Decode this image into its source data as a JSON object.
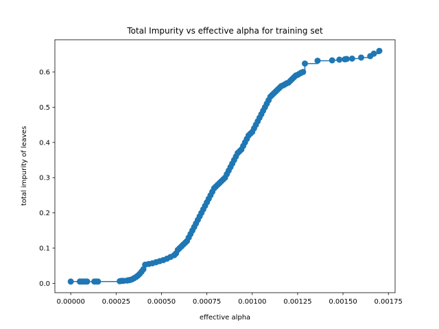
{
  "chart_data": {
    "type": "line",
    "title": "Total Impurity vs effective alpha for training set",
    "xlabel": "effective alpha",
    "ylabel": "total impurity of leaves",
    "xlim": [
      -8.75e-05,
      0.001787
    ],
    "ylim": [
      -0.0265,
      0.6915
    ],
    "xticks": [
      {
        "value": 0.0,
        "label": "0.00000"
      },
      {
        "value": 0.00025,
        "label": "0.00025"
      },
      {
        "value": 0.0005,
        "label": "0.00050"
      },
      {
        "value": 0.00075,
        "label": "0.00075"
      },
      {
        "value": 0.001,
        "label": "0.00100"
      },
      {
        "value": 0.00125,
        "label": "0.00125"
      },
      {
        "value": 0.0015,
        "label": "0.00150"
      },
      {
        "value": 0.00175,
        "label": "0.00175"
      }
    ],
    "yticks": [
      {
        "value": 0.0,
        "label": "0.0"
      },
      {
        "value": 0.1,
        "label": "0.1"
      },
      {
        "value": 0.2,
        "label": "0.2"
      },
      {
        "value": 0.3,
        "label": "0.3"
      },
      {
        "value": 0.4,
        "label": "0.4"
      },
      {
        "value": 0.5,
        "label": "0.5"
      },
      {
        "value": 0.6,
        "label": "0.6"
      }
    ],
    "grid": false,
    "marker": "circle",
    "drawstyle": "steps-post",
    "color": "#1f77b4",
    "series": [
      {
        "x": [
          0.0,
          5e-05,
          6e-05,
          7e-05,
          8e-05,
          9e-05,
          0.00013,
          0.00014,
          0.00015,
          0.00027,
          0.00028,
          0.00029,
          0.00031,
          0.00032,
          0.00033,
          0.00034,
          0.00035,
          0.00036,
          0.00037,
          0.00038,
          0.00039,
          0.0004,
          0.00041,
          0.00043,
          0.00045,
          0.00047,
          0.00049,
          0.00051,
          0.00053,
          0.00055,
          0.00057,
          0.00058,
          0.00059,
          0.0006,
          0.00061,
          0.00062,
          0.00063,
          0.00064,
          0.00065,
          0.00066,
          0.00067,
          0.00068,
          0.00069,
          0.0007,
          0.00071,
          0.00072,
          0.00073,
          0.00074,
          0.00075,
          0.00076,
          0.00077,
          0.00078,
          0.00079,
          0.0008,
          0.00081,
          0.00082,
          0.00083,
          0.00084,
          0.00085,
          0.00086,
          0.00087,
          0.00088,
          0.00089,
          0.0009,
          0.00091,
          0.00092,
          0.00093,
          0.00094,
          0.00095,
          0.00096,
          0.00097,
          0.00098,
          0.00099,
          0.001,
          0.00101,
          0.00102,
          0.00103,
          0.00104,
          0.00105,
          0.00106,
          0.00107,
          0.00108,
          0.00109,
          0.0011,
          0.00111,
          0.00112,
          0.00113,
          0.00114,
          0.00115,
          0.00116,
          0.00117,
          0.00118,
          0.00119,
          0.0012,
          0.00121,
          0.00122,
          0.00123,
          0.00124,
          0.00125,
          0.00126,
          0.00127,
          0.00128,
          0.00129,
          0.00136,
          0.00144,
          0.00148,
          0.00151,
          0.00152,
          0.00155,
          0.0016,
          0.00165,
          0.00167,
          0.0017
        ],
        "y": [
          0.005,
          0.005,
          0.005,
          0.005,
          0.005,
          0.005,
          0.005,
          0.005,
          0.005,
          0.006,
          0.007,
          0.007,
          0.008,
          0.009,
          0.01,
          0.012,
          0.015,
          0.018,
          0.022,
          0.027,
          0.033,
          0.04,
          0.053,
          0.055,
          0.057,
          0.06,
          0.063,
          0.066,
          0.07,
          0.075,
          0.08,
          0.085,
          0.095,
          0.1,
          0.105,
          0.11,
          0.115,
          0.12,
          0.13,
          0.14,
          0.15,
          0.16,
          0.17,
          0.18,
          0.19,
          0.2,
          0.21,
          0.22,
          0.23,
          0.24,
          0.25,
          0.26,
          0.27,
          0.275,
          0.28,
          0.285,
          0.29,
          0.295,
          0.3,
          0.31,
          0.32,
          0.33,
          0.34,
          0.35,
          0.36,
          0.37,
          0.375,
          0.38,
          0.39,
          0.4,
          0.41,
          0.42,
          0.425,
          0.43,
          0.44,
          0.45,
          0.46,
          0.47,
          0.48,
          0.49,
          0.5,
          0.51,
          0.52,
          0.53,
          0.535,
          0.54,
          0.545,
          0.55,
          0.555,
          0.56,
          0.562,
          0.565,
          0.568,
          0.57,
          0.575,
          0.58,
          0.585,
          0.59,
          0.592,
          0.595,
          0.598,
          0.6,
          0.624,
          0.632,
          0.633,
          0.635,
          0.636,
          0.637,
          0.638,
          0.641,
          0.645,
          0.652,
          0.66
        ]
      }
    ]
  }
}
